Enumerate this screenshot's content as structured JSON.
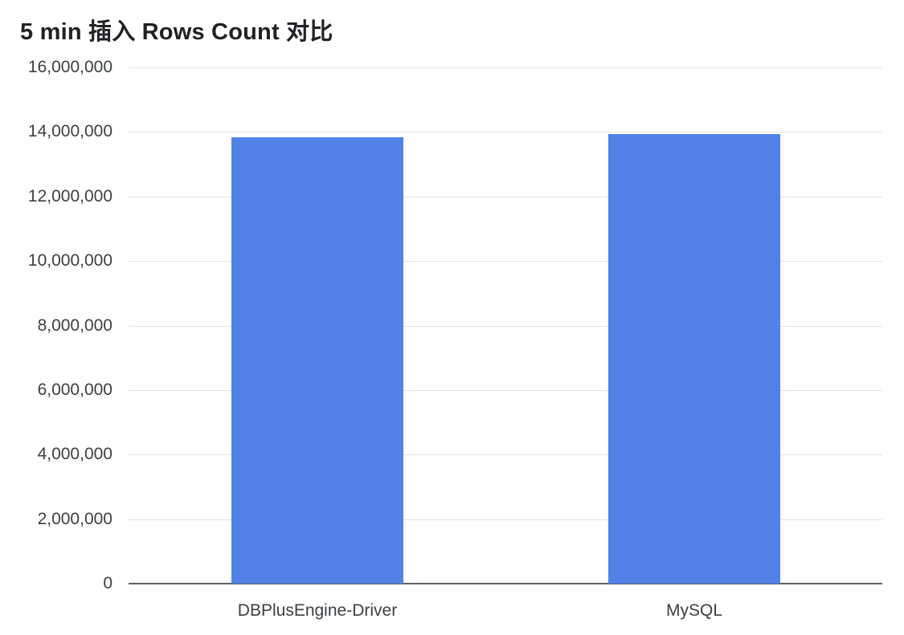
{
  "page": {
    "background_color": "#ffffff"
  },
  "chart_data": {
    "type": "bar",
    "title": "5 min 插入 Rows Count 对比",
    "categories": [
      "DBPlusEngine-Driver",
      "MySQL"
    ],
    "series": [
      {
        "name": "Rows Count",
        "values": [
          13840000,
          13930000
        ]
      }
    ],
    "xlabel": "",
    "ylabel": "",
    "ylim": [
      0,
      16000000
    ],
    "ytick_step": 2000000,
    "ytick_labels": [
      "0",
      "2,000,000",
      "4,000,000",
      "6,000,000",
      "8,000,000",
      "10,000,000",
      "12,000,000",
      "14,000,000",
      "16,000,000"
    ],
    "grid": "horizontal",
    "legend_position": "none",
    "colors": {
      "bar": "#5282e8",
      "gridline": "#e3e3e3",
      "baseline": "#616161",
      "title_text": "#202124",
      "axis_text": "#3c4043"
    }
  }
}
